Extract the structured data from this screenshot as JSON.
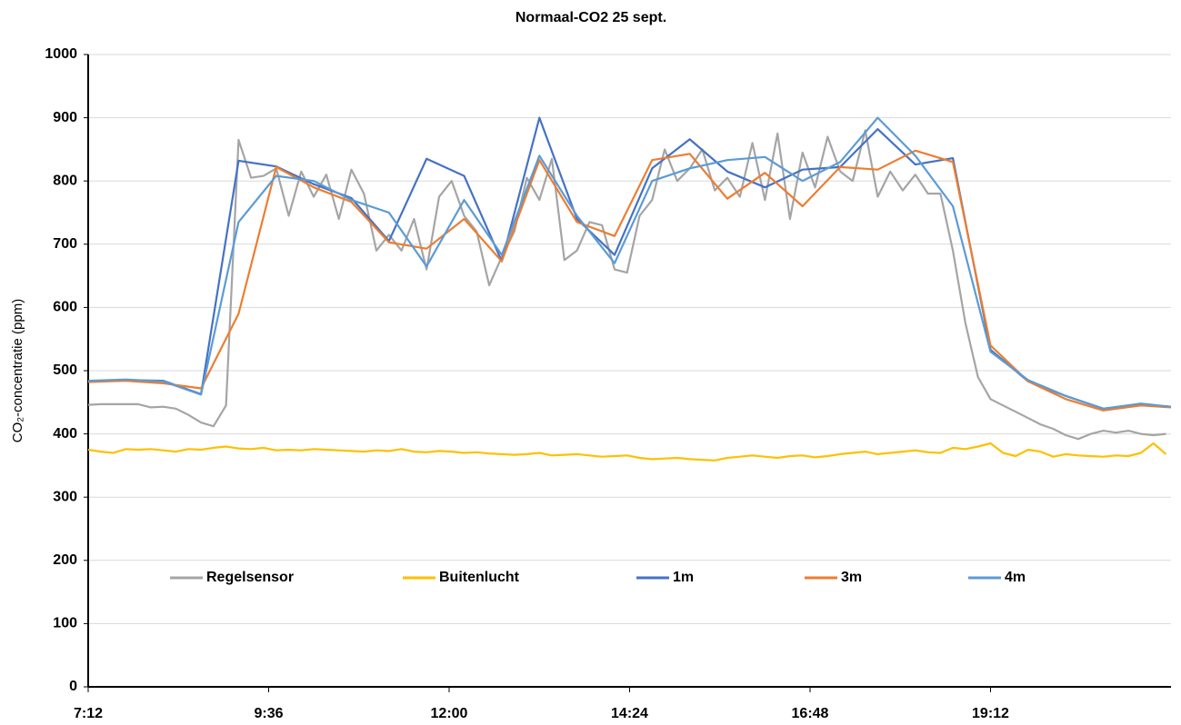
{
  "chart_data": {
    "type": "line",
    "title": "Normaal-CO2 25 sept.",
    "y_label": "CO₂-concentratie (ppm)",
    "xlim": [
      432,
      1296
    ],
    "ylim": [
      0,
      1000
    ],
    "xticks": [
      {
        "value": 432,
        "label": "7:12"
      },
      {
        "value": 576,
        "label": "9:36"
      },
      {
        "value": 720,
        "label": "12:00"
      },
      {
        "value": 864,
        "label": "14:24"
      },
      {
        "value": 1008,
        "label": "16:48"
      },
      {
        "value": 1152,
        "label": "19:12"
      }
    ],
    "yticks": [
      0,
      100,
      200,
      300,
      400,
      500,
      600,
      700,
      800,
      900,
      1000
    ],
    "grid": true,
    "legend": "inside-bottom",
    "series": [
      {
        "name": "Regelsensor",
        "color": "#a5a5a5",
        "x": [
          432,
          442,
          452,
          462,
          472,
          482,
          492,
          502,
          512,
          522,
          532,
          542,
          552,
          562,
          572,
          582,
          592,
          602,
          612,
          622,
          632,
          642,
          652,
          662,
          672,
          682,
          692,
          702,
          712,
          722,
          732,
          742,
          752,
          762,
          772,
          782,
          792,
          802,
          812,
          822,
          832,
          842,
          852,
          862,
          872,
          882,
          892,
          902,
          912,
          922,
          932,
          942,
          952,
          962,
          972,
          982,
          992,
          1002,
          1012,
          1022,
          1032,
          1042,
          1052,
          1062,
          1072,
          1082,
          1092,
          1102,
          1112,
          1122,
          1132,
          1142,
          1152,
          1162,
          1172,
          1182,
          1192,
          1202,
          1212,
          1222,
          1232,
          1242,
          1252,
          1262,
          1272,
          1282,
          1292
        ],
        "values": [
          446,
          447,
          447,
          447,
          447,
          442,
          443,
          440,
          430,
          418,
          412,
          445,
          865,
          805,
          808,
          820,
          745,
          815,
          775,
          810,
          740,
          818,
          780,
          690,
          715,
          690,
          740,
          660,
          775,
          800,
          745,
          720,
          635,
          680,
          720,
          805,
          770,
          835,
          675,
          690,
          735,
          730,
          660,
          655,
          745,
          770,
          850,
          800,
          820,
          850,
          785,
          805,
          775,
          860,
          770,
          875,
          740,
          845,
          790,
          870,
          815,
          800,
          880,
          775,
          815,
          785,
          810,
          780,
          780,
          690,
          575,
          490,
          455,
          445,
          435,
          425,
          415,
          408,
          398,
          392,
          400,
          405,
          402,
          405,
          400,
          398,
          400
        ]
      },
      {
        "name": "Buitenlucht",
        "color": "#ffc000",
        "x": [
          432,
          442,
          452,
          462,
          472,
          482,
          492,
          502,
          512,
          522,
          532,
          542,
          552,
          562,
          572,
          582,
          592,
          602,
          612,
          622,
          632,
          642,
          652,
          662,
          672,
          682,
          692,
          702,
          712,
          722,
          732,
          742,
          752,
          762,
          772,
          782,
          792,
          802,
          812,
          822,
          832,
          842,
          852,
          862,
          872,
          882,
          892,
          902,
          912,
          922,
          932,
          942,
          952,
          962,
          972,
          982,
          992,
          1002,
          1012,
          1022,
          1032,
          1042,
          1052,
          1062,
          1072,
          1082,
          1092,
          1102,
          1112,
          1122,
          1132,
          1142,
          1152,
          1162,
          1172,
          1182,
          1192,
          1202,
          1212,
          1222,
          1232,
          1242,
          1252,
          1262,
          1272,
          1282,
          1292
        ],
        "values": [
          375,
          372,
          370,
          376,
          375,
          376,
          374,
          372,
          376,
          375,
          378,
          380,
          377,
          376,
          378,
          374,
          375,
          374,
          376,
          375,
          374,
          373,
          372,
          374,
          373,
          376,
          372,
          371,
          373,
          372,
          370,
          371,
          369,
          368,
          367,
          368,
          370,
          366,
          367,
          368,
          366,
          364,
          365,
          366,
          362,
          360,
          361,
          362,
          360,
          359,
          358,
          362,
          364,
          366,
          364,
          362,
          365,
          366,
          363,
          365,
          368,
          370,
          372,
          368,
          370,
          372,
          374,
          371,
          370,
          378,
          376,
          380,
          385,
          370,
          365,
          375,
          372,
          364,
          368,
          366,
          365,
          364,
          366,
          365,
          370,
          385,
          368
        ]
      },
      {
        "name": "1m",
        "color": "#4472c4",
        "x": [
          432,
          462,
          492,
          522,
          552,
          582,
          612,
          642,
          672,
          702,
          732,
          762,
          792,
          822,
          852,
          882,
          912,
          942,
          972,
          1002,
          1032,
          1062,
          1092,
          1122,
          1152,
          1182,
          1212,
          1242,
          1272,
          1296
        ],
        "values": [
          483,
          485,
          484,
          463,
          832,
          823,
          795,
          773,
          705,
          835,
          808,
          673,
          900,
          740,
          683,
          820,
          866,
          815,
          790,
          818,
          822,
          882,
          826,
          836,
          533,
          483,
          460,
          440,
          447,
          443
        ]
      },
      {
        "name": "3m",
        "color": "#ed7d31",
        "x": [
          432,
          462,
          492,
          522,
          552,
          582,
          612,
          642,
          672,
          702,
          732,
          762,
          792,
          822,
          852,
          882,
          912,
          942,
          972,
          1002,
          1032,
          1062,
          1092,
          1122,
          1152,
          1182,
          1212,
          1242,
          1272,
          1296
        ],
        "values": [
          482,
          484,
          480,
          472,
          590,
          822,
          790,
          767,
          703,
          693,
          740,
          673,
          833,
          735,
          713,
          833,
          843,
          772,
          813,
          760,
          822,
          818,
          848,
          830,
          540,
          483,
          455,
          437,
          445,
          442
        ]
      },
      {
        "name": "4m",
        "color": "#5b9bd5",
        "x": [
          432,
          462,
          492,
          522,
          552,
          582,
          612,
          642,
          672,
          702,
          732,
          762,
          792,
          822,
          852,
          882,
          912,
          942,
          972,
          1002,
          1032,
          1062,
          1092,
          1122,
          1152,
          1182,
          1212,
          1242,
          1272,
          1296
        ],
        "values": [
          484,
          486,
          483,
          462,
          735,
          808,
          800,
          770,
          750,
          665,
          770,
          683,
          840,
          745,
          670,
          800,
          820,
          833,
          838,
          800,
          830,
          900,
          840,
          760,
          530,
          485,
          460,
          440,
          448,
          443
        ]
      }
    ]
  }
}
